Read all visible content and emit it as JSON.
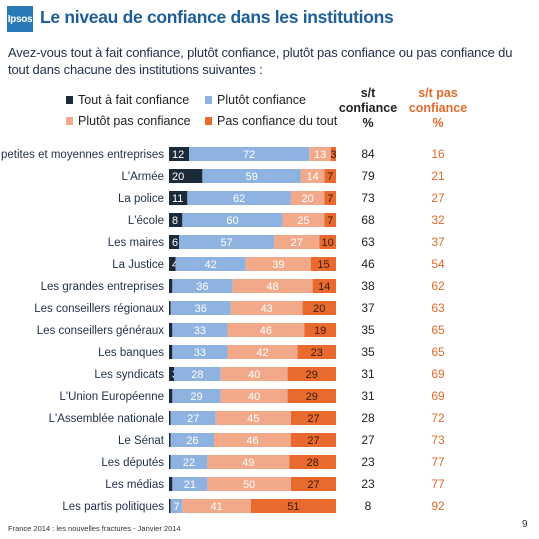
{
  "logo": "Ipsos",
  "title": "Le niveau de confiance dans les institutions",
  "question": "Avez-vous tout à fait confiance, plutôt confiance, plutôt pas confiance ou pas confiance du tout dans chacune des institutions suivantes :",
  "columns": {
    "confidence_total": "s/t confiance %",
    "no_confidence_total": "s/t pas confiance %"
  },
  "colors": {
    "tout_a_fait": "#1c2b3a",
    "plutot": "#8fb3e1",
    "plutot_pas": "#f2a98a",
    "pas_du_tout": "#e86a2e",
    "title": "#1f5f99",
    "no_confidence_text": "#e26a2a"
  },
  "footer": "France 2014 : les nouvelles fractures - Janvier 2014",
  "page_number": "9",
  "chart_data": {
    "type": "bar",
    "orientation": "horizontal",
    "stacked": true,
    "series": [
      {
        "name": "Tout à fait confiance",
        "values": [
          12,
          20,
          11,
          8,
          6,
          4,
          2,
          1,
          2,
          2,
          3,
          2,
          1,
          1,
          1,
          2,
          1
        ]
      },
      {
        "name": "Plutôt confiance",
        "values": [
          72,
          59,
          62,
          60,
          57,
          42,
          36,
          36,
          33,
          33,
          28,
          29,
          27,
          26,
          22,
          21,
          7
        ]
      },
      {
        "name": "Plutôt pas confiance",
        "values": [
          13,
          14,
          20,
          25,
          27,
          39,
          48,
          43,
          46,
          42,
          40,
          40,
          45,
          46,
          49,
          50,
          41
        ]
      },
      {
        "name": "Pas confiance du tout",
        "values": [
          3,
          7,
          7,
          7,
          10,
          15,
          14,
          20,
          19,
          23,
          29,
          29,
          27,
          27,
          28,
          27,
          51
        ]
      }
    ],
    "categories": [
      "Les petites et moyennes entreprises",
      "L'Armée",
      "La police",
      "L'école",
      "Les maires",
      "La Justice",
      "Les grandes entreprises",
      "Les conseillers régionaux",
      "Les conseillers généraux",
      "Les banques",
      "Les syndicats",
      "L'Union Européenne",
      "L'Assemblée nationale",
      "Le Sénat",
      "Les députés",
      "Les médias",
      "Les partis politiques"
    ],
    "confidence_total": [
      84,
      79,
      73,
      68,
      63,
      46,
      38,
      37,
      35,
      35,
      31,
      31,
      28,
      27,
      23,
      23,
      8
    ],
    "no_confidence_total": [
      16,
      21,
      27,
      32,
      37,
      54,
      62,
      63,
      65,
      65,
      69,
      69,
      72,
      73,
      77,
      77,
      92
    ],
    "xlim": [
      0,
      100
    ],
    "legend_position": "top"
  }
}
